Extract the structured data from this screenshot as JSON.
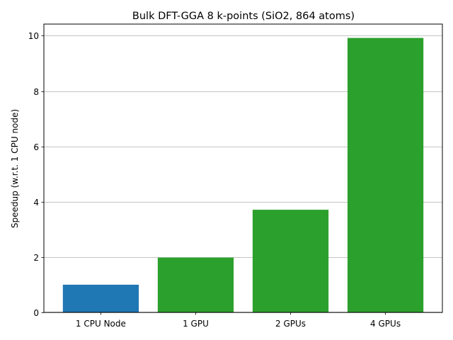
{
  "chart_data": {
    "type": "bar",
    "title": "Bulk DFT-GGA 8 k-points (SiO2, 864 atoms)",
    "xlabel": "",
    "ylabel": "Speedup (w.r.t. 1 CPU node)",
    "categories": [
      "1 CPU Node",
      "1 GPU",
      "2 GPUs",
      "4 GPUs"
    ],
    "values": [
      1.0,
      1.98,
      3.71,
      9.92
    ],
    "bar_colors": [
      "#1f77b4",
      "#2ca02c",
      "#2ca02c",
      "#2ca02c"
    ],
    "ylim": [
      0,
      10.42
    ],
    "yticks": [
      0,
      2,
      4,
      6,
      8,
      10
    ],
    "grid": "y-major",
    "grid_color": "#b0b0b0",
    "legend": "none"
  }
}
